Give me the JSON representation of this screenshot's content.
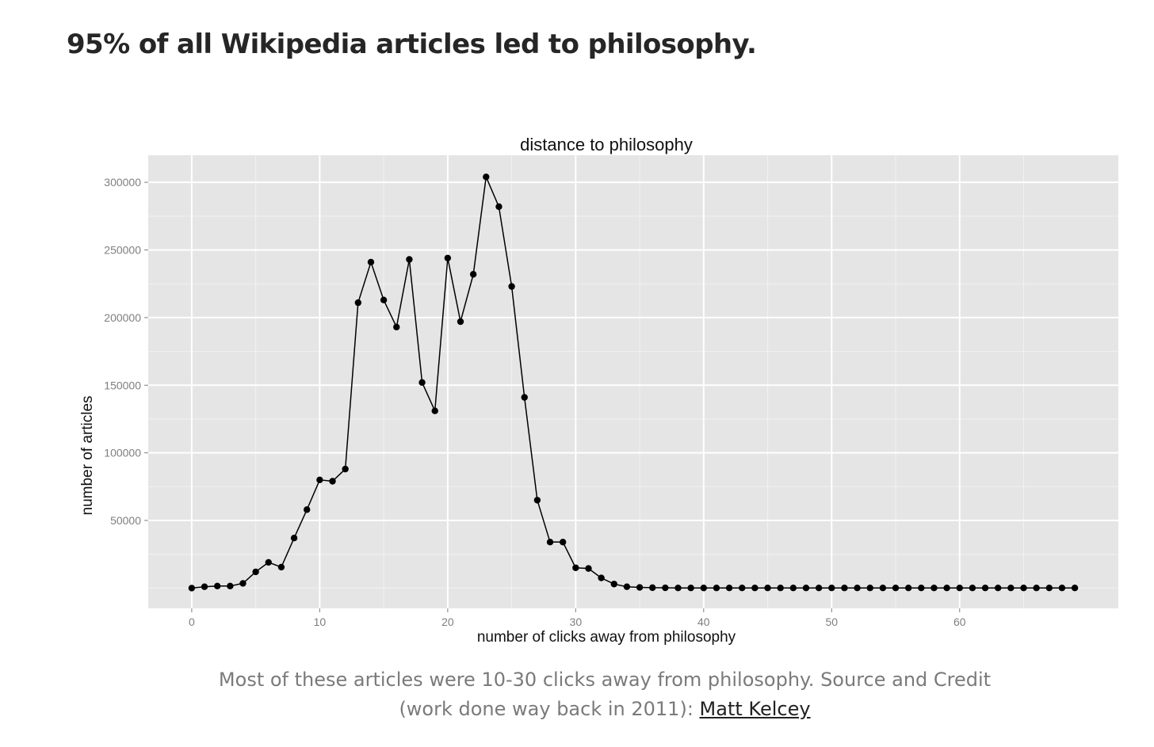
{
  "heading": "95% of all Wikipedia articles led to philosophy.",
  "caption": {
    "text": "Most of these articles were 10-30 clicks away from philosophy. Source and Credit (work done way back in 2011): ",
    "link_text": "Matt Kelcey"
  },
  "colors": {
    "panel": "#e5e5e5",
    "grid_major": "#ffffff",
    "grid_minor": "#f2f2f2",
    "line": "#000000",
    "heading": "#262626",
    "caption": "#7a7a7a"
  },
  "chart_data": {
    "type": "line",
    "title": "distance to philosophy",
    "xlabel": "number of clicks away from philosophy",
    "ylabel": "number of articles",
    "xlim": [
      -3.4,
      72.4
    ],
    "ylim": [
      -15000,
      320000
    ],
    "x_ticks": [
      0,
      10,
      20,
      30,
      40,
      50,
      60
    ],
    "y_ticks": [
      50000,
      100000,
      150000,
      200000,
      250000,
      300000
    ],
    "x_tick_labels": [
      "0",
      "10",
      "20",
      "30",
      "40",
      "50",
      "60"
    ],
    "y_tick_labels": [
      "50000",
      "100000",
      "150000",
      "200000",
      "250000",
      "300000"
    ],
    "grid": true,
    "series": [
      {
        "name": "articles",
        "x": [
          0,
          1,
          2,
          3,
          4,
          5,
          6,
          7,
          8,
          9,
          10,
          11,
          12,
          13,
          14,
          15,
          16,
          17,
          18,
          19,
          20,
          21,
          22,
          23,
          24,
          25,
          26,
          27,
          28,
          29,
          30,
          31,
          32,
          33,
          34,
          35,
          36,
          37,
          38,
          39,
          40,
          41,
          42,
          43,
          44,
          45,
          46,
          47,
          48,
          49,
          50,
          51,
          52,
          53,
          54,
          55,
          56,
          57,
          58,
          59,
          60,
          61,
          62,
          63,
          64,
          65,
          66,
          67,
          68,
          69
        ],
        "values": [
          0,
          1000,
          1500,
          1500,
          3500,
          12000,
          19000,
          15500,
          37000,
          58000,
          80000,
          79000,
          88000,
          211000,
          241000,
          213000,
          193000,
          243000,
          152000,
          131000,
          244000,
          197000,
          232000,
          304000,
          282000,
          223000,
          141000,
          65000,
          34000,
          34000,
          15000,
          14500,
          7500,
          3000,
          1000,
          500,
          300,
          200,
          100,
          100,
          100,
          100,
          100,
          100,
          100,
          100,
          100,
          100,
          100,
          100,
          100,
          100,
          100,
          100,
          100,
          100,
          100,
          100,
          100,
          100,
          100,
          100,
          100,
          100,
          100,
          100,
          100,
          100,
          100,
          100
        ]
      }
    ]
  }
}
